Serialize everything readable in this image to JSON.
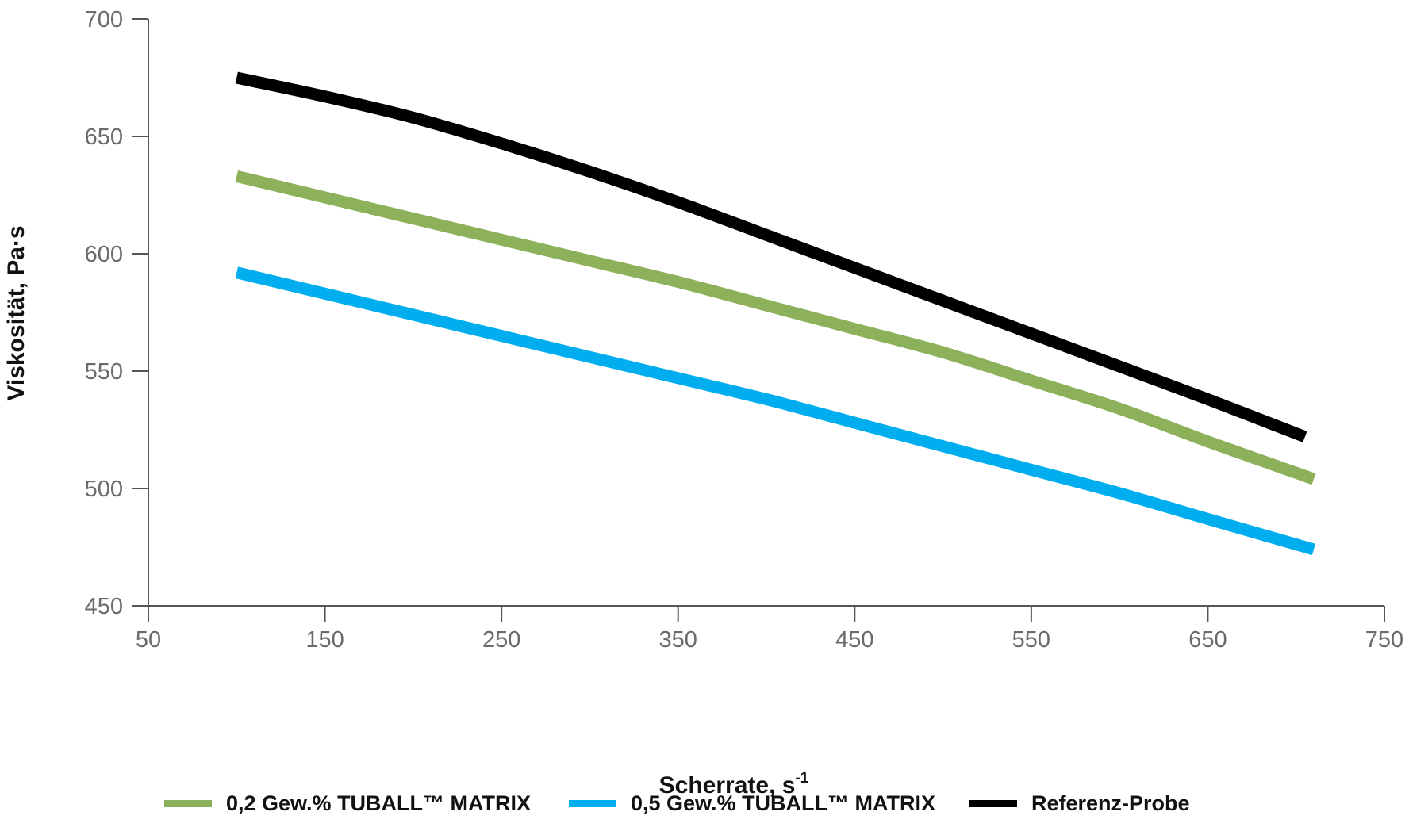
{
  "chart_data": {
    "type": "line",
    "title": "",
    "xlabel": "Scherrate, s",
    "xlabel_superscript": "-1",
    "ylabel": "Viskosität, Pa·s",
    "xlim": [
      50,
      750
    ],
    "ylim": [
      450,
      700
    ],
    "x_ticks": [
      "50",
      "150",
      "250",
      "350",
      "450",
      "550",
      "650",
      "750"
    ],
    "y_ticks": [
      "700",
      "650",
      "600",
      "550",
      "500",
      "450"
    ],
    "x_tick_values": [
      50,
      150,
      250,
      350,
      450,
      550,
      650,
      750
    ],
    "y_tick_values": [
      700,
      650,
      600,
      550,
      500,
      450
    ],
    "grid": false,
    "legend_position": "bottom",
    "series": [
      {
        "name": "0,2 Gew.% TUBALL™ MATRIX",
        "color": "#8db05a",
        "x": [
          100,
          150,
          200,
          250,
          300,
          350,
          400,
          450,
          500,
          550,
          600,
          650,
          710
        ],
        "y": [
          633,
          624,
          615,
          606,
          597,
          588,
          578,
          568,
          558,
          546,
          534,
          520,
          504
        ]
      },
      {
        "name": "0,5 Gew.% TUBALL™ MATRIX",
        "color": "#00aeef",
        "x": [
          100,
          150,
          200,
          250,
          300,
          350,
          400,
          450,
          500,
          550,
          600,
          650,
          710
        ],
        "y": [
          592,
          583,
          574,
          565,
          556,
          547,
          538,
          528,
          518,
          508,
          498,
          487,
          474
        ]
      },
      {
        "name": "Referenz-Probe",
        "color": "#000000",
        "x": [
          100,
          150,
          200,
          250,
          300,
          350,
          400,
          450,
          500,
          550,
          600,
          650,
          705
        ],
        "y": [
          675,
          667,
          658,
          647,
          635,
          622,
          608,
          594,
          580,
          566,
          552,
          538,
          522
        ]
      }
    ]
  }
}
